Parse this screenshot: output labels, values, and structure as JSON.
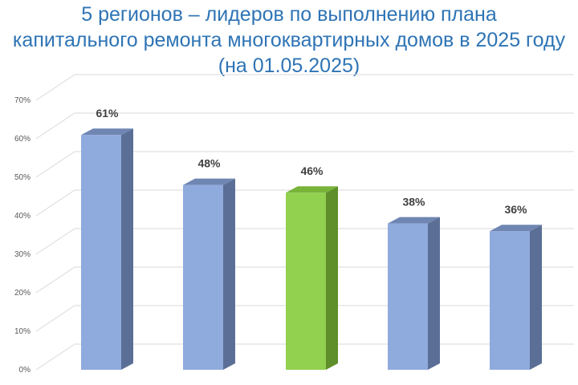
{
  "title": {
    "line1": "5 регионов – лидеров по выполнению плана",
    "line2": "капитального ремонта многоквартирных домов в 2025 году",
    "line3": "(на 01.05.2025)"
  },
  "colors": {
    "title": "#2e74b5",
    "bar_front": "#8faadc",
    "bar_side": "#5b6f96",
    "bar_top": "#6f86b3",
    "highlight_front": "#92d050",
    "highlight_side": "#5f8f2b",
    "highlight_top": "#78b33a",
    "grid": "#d9d9d9"
  },
  "chart_data": {
    "type": "bar",
    "title": "5 регионов – лидеров по выполнению плана капитального ремонта многоквартирных домов в 2025 году (на 01.05.2025)",
    "categories": [
      "",
      "",
      "",
      "",
      ""
    ],
    "values": [
      61,
      48,
      46,
      38,
      36
    ],
    "data_labels": [
      "61%",
      "48%",
      "46%",
      "38%",
      "36%"
    ],
    "highlight_index": 2,
    "ylim": [
      0,
      70
    ],
    "yticks": [
      "0%",
      "10%",
      "20%",
      "30%",
      "40%",
      "50%",
      "60%",
      "70%"
    ],
    "grid": true,
    "style": "3d-column",
    "legend": "none",
    "xlabel": "",
    "ylabel": ""
  }
}
